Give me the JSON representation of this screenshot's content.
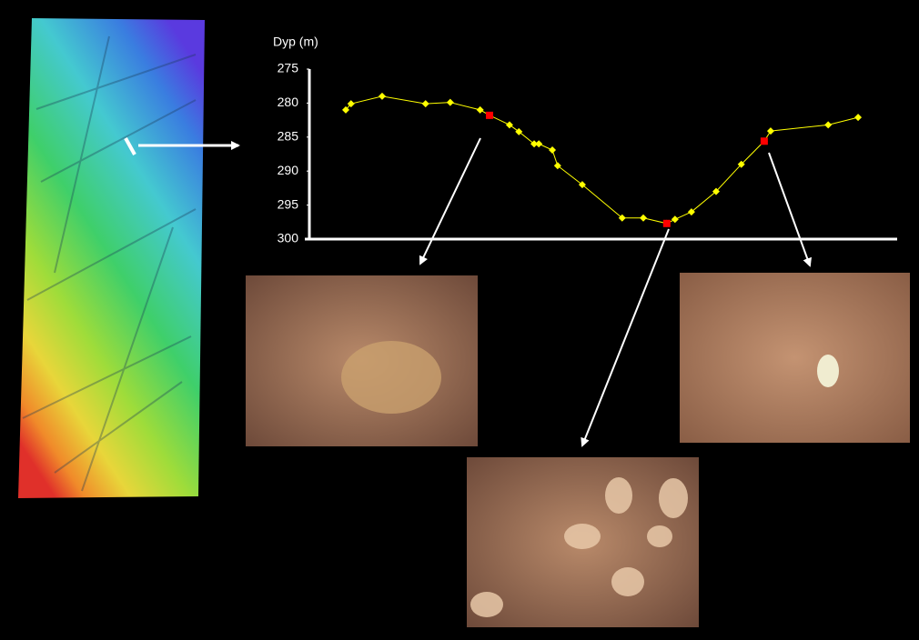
{
  "chart_data": {
    "type": "line",
    "y_label": "Dyp (m)",
    "xlim": [
      0,
      100
    ],
    "ylim": [
      300,
      275
    ],
    "yticks": [
      275,
      280,
      285,
      290,
      295,
      300
    ],
    "grid": false,
    "series": [
      {
        "color": "#ffff00",
        "marker": "diamond",
        "line": true,
        "x": [
          6.2,
          7.1,
          12.4,
          19.8,
          24.0,
          29.1,
          30.7,
          34.1,
          35.7,
          38.3,
          39.1,
          41.4,
          42.3,
          46.5,
          53.3,
          56.9,
          60.9,
          62.3,
          65.1,
          69.3,
          73.6,
          77.5,
          78.6,
          88.4,
          93.5
        ],
        "values": [
          281.0,
          280.1,
          279.0,
          280.1,
          279.9,
          281.0,
          281.8,
          283.2,
          284.2,
          286.0,
          286.0,
          286.9,
          289.2,
          292.0,
          296.9,
          296.9,
          297.7,
          297.1,
          296.0,
          293.0,
          289.0,
          285.6,
          284.1,
          283.2,
          282.1
        ]
      },
      {
        "color": "#ff0000",
        "marker": "square",
        "line": false,
        "x": [
          30.7,
          60.9,
          77.5
        ],
        "values": [
          281.8,
          297.7,
          285.6
        ]
      }
    ]
  }
}
